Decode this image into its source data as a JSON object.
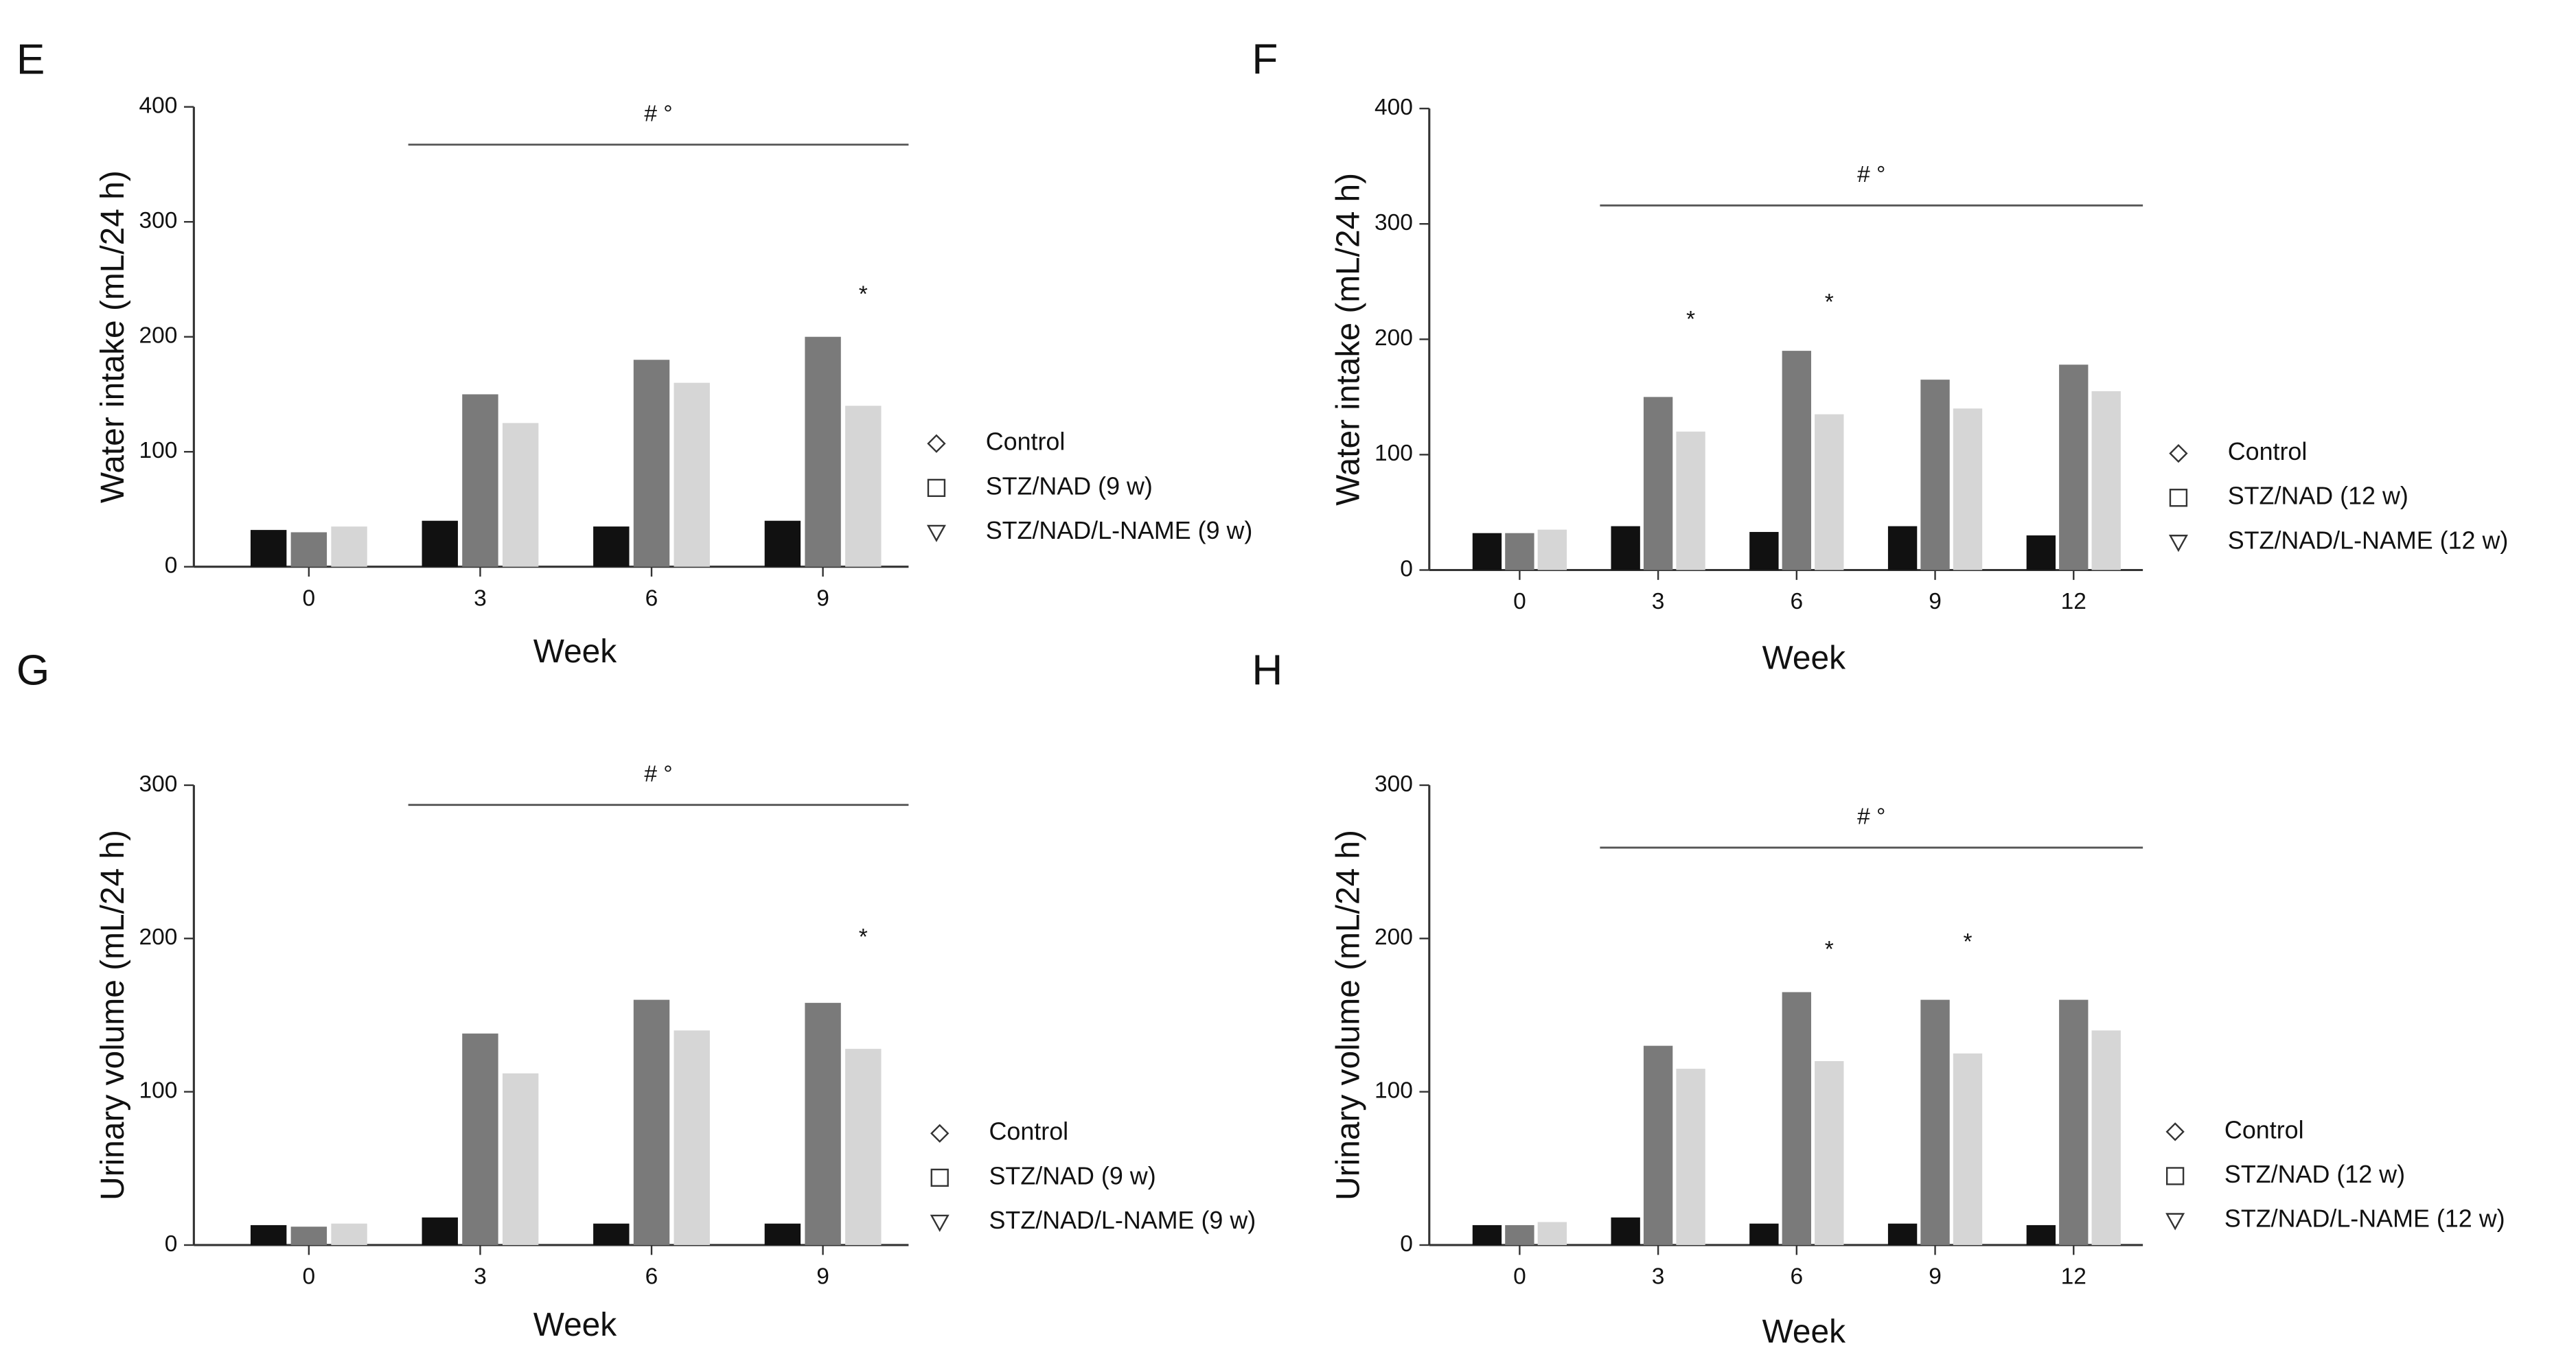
{
  "chart_data": [
    {
      "type": "bar",
      "panel": "E",
      "ylabel": "Water intake (mL/24 h)",
      "xlabel": "Week",
      "categories": [
        "0",
        "3",
        "6",
        "9"
      ],
      "series": [
        {
          "name": "Control",
          "color": "#111111",
          "values": [
            32,
            40,
            35,
            40
          ]
        },
        {
          "name": "STZ/NAD (9 w)",
          "color": "#7a7a7a",
          "values": [
            30,
            150,
            180,
            200
          ]
        },
        {
          "name": "STZ/NAD/L-NAME (9 w)",
          "color": "#d6d6d6",
          "values": [
            35,
            125,
            160,
            140
          ]
        }
      ],
      "ylim": [
        0,
        400
      ],
      "yticks": [
        0,
        100,
        200,
        300,
        400
      ],
      "bracket": {
        "text": "# °",
        "from": "3",
        "to": "9"
      },
      "annotations": [
        {
          "text": "*",
          "category": "9",
          "series": "STZ/NAD/L-NAME (9 w)"
        }
      ]
    },
    {
      "type": "bar",
      "panel": "F",
      "ylabel": "Water intake (mL/24 h)",
      "xlabel": "Week",
      "categories": [
        "0",
        "3",
        "6",
        "9",
        "12"
      ],
      "series": [
        {
          "name": "Control",
          "color": "#111111",
          "values": [
            32,
            38,
            33,
            38,
            30
          ]
        },
        {
          "name": "STZ/NAD (12 w)",
          "color": "#7a7a7a",
          "values": [
            32,
            150,
            190,
            165,
            178
          ]
        },
        {
          "name": "STZ/NAD/L-NAME (12 w)",
          "color": "#d6d6d6",
          "values": [
            35,
            120,
            135,
            140,
            155
          ]
        }
      ],
      "ylim": [
        0,
        400
      ],
      "yticks": [
        0,
        100,
        200,
        300,
        400
      ],
      "bracket": {
        "text": "# °",
        "from": "3",
        "to": "12"
      },
      "annotations": [
        {
          "text": "*",
          "category": "3",
          "series": "STZ/NAD/L-NAME (12 w)"
        },
        {
          "text": "*",
          "category": "6",
          "series": "STZ/NAD/L-NAME (12 w)"
        }
      ]
    },
    {
      "type": "bar",
      "panel": "G",
      "ylabel": "Urinary volume (mL/24 h)",
      "xlabel": "Week",
      "categories": [
        "0",
        "3",
        "6",
        "9"
      ],
      "series": [
        {
          "name": "Control",
          "color": "#111111",
          "values": [
            13,
            18,
            14,
            14
          ]
        },
        {
          "name": "STZ/NAD (9 w)",
          "color": "#7a7a7a",
          "values": [
            12,
            138,
            160,
            158
          ]
        },
        {
          "name": "STZ/NAD/L-NAME (9 w)",
          "color": "#d6d6d6",
          "values": [
            14,
            112,
            140,
            128
          ]
        }
      ],
      "ylim": [
        0,
        300
      ],
      "yticks": [
        0,
        100,
        200,
        300
      ],
      "bracket": {
        "text": "# °",
        "from": "3",
        "to": "9"
      },
      "annotations": [
        {
          "text": "*",
          "category": "9",
          "series": "STZ/NAD/L-NAME (9 w)"
        }
      ]
    },
    {
      "type": "bar",
      "panel": "H",
      "ylabel": "Urinary volume (mL/24 h)",
      "xlabel": "Week",
      "categories": [
        "0",
        "3",
        "6",
        "9",
        "12"
      ],
      "series": [
        {
          "name": "Control",
          "color": "#111111",
          "values": [
            13,
            18,
            14,
            14,
            13
          ]
        },
        {
          "name": "STZ/NAD (12 w)",
          "color": "#7a7a7a",
          "values": [
            13,
            130,
            165,
            160,
            160
          ]
        },
        {
          "name": "STZ/NAD/L-NAME (12 w)",
          "color": "#d6d6d6",
          "values": [
            15,
            115,
            120,
            125,
            140
          ]
        }
      ],
      "ylim": [
        0,
        300
      ],
      "yticks": [
        0,
        100,
        200,
        300
      ],
      "bracket": {
        "text": "# °",
        "from": "3",
        "to": "12"
      },
      "annotations": [
        {
          "text": "*",
          "category": "6",
          "series": "STZ/NAD/L-NAME (12 w)"
        },
        {
          "text": "*",
          "category": "9",
          "series": "STZ/NAD/L-NAME (12 w)"
        }
      ]
    }
  ]
}
